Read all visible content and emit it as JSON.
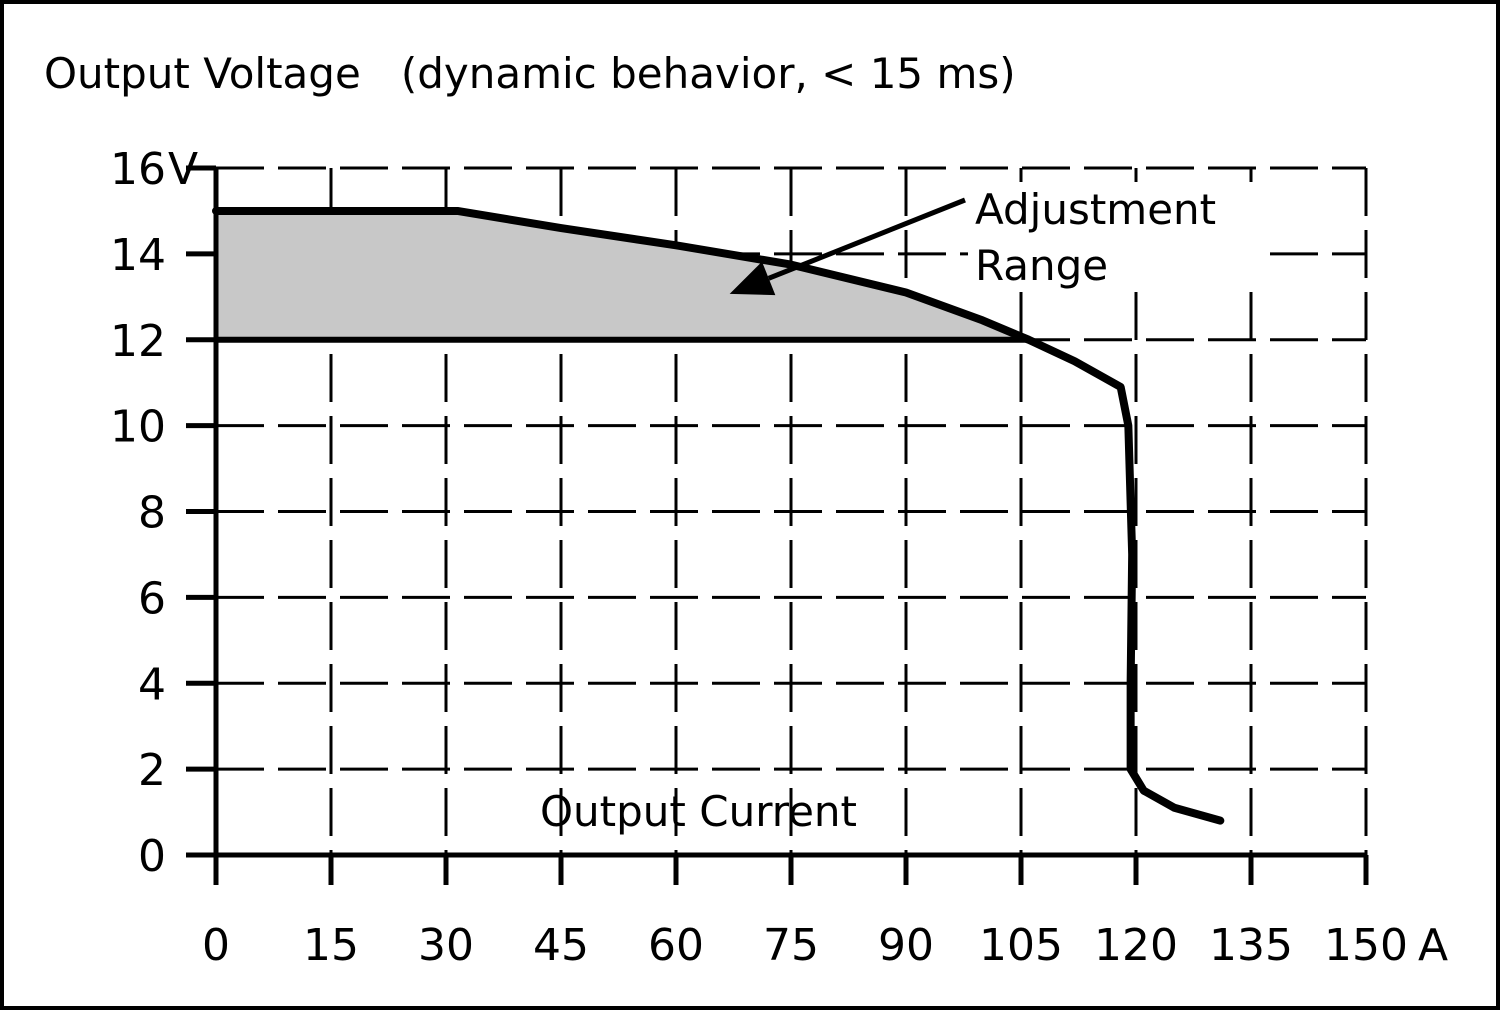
{
  "chart_data": {
    "type": "line",
    "title": "Output Voltage   (dynamic behavior, < 15 ms)",
    "xlabel": "Output Current",
    "ylabel": "",
    "xlim": [
      0,
      150
    ],
    "ylim": [
      0,
      16
    ],
    "x_ticks": [
      "0",
      "15",
      "30",
      "45",
      "60",
      "75",
      "90",
      "105",
      "120",
      "135",
      "150"
    ],
    "x_unit": "A",
    "y_ticks": [
      "0",
      "2",
      "4",
      "6",
      "8",
      "10",
      "12",
      "14",
      "16"
    ],
    "y_unit": "V",
    "grid": true,
    "grid_style": "dashed",
    "series": [
      {
        "x": [
          0,
          31.5,
          45,
          60,
          75,
          90,
          100,
          106,
          112,
          118,
          119,
          119.5,
          119.3,
          119.3,
          121,
          125,
          131
        ],
        "y": [
          15,
          15,
          14.6,
          14.2,
          13.75,
          13.1,
          12.45,
          12,
          11.5,
          10.9,
          10,
          7,
          4,
          2,
          1.5,
          1.1,
          0.8
        ],
        "color": "#000000"
      }
    ],
    "shaded_region": {
      "lower": 12,
      "upper": "curve",
      "x_range": [
        0,
        106
      ],
      "color": "#c8c8c8"
    },
    "lower_bound_line": {
      "y": 12,
      "x_range": [
        0,
        106
      ]
    },
    "annotations": [
      {
        "text_lines": [
          "Adjustment",
          "Range"
        ],
        "arrow_target": [
          67,
          13.3
        ]
      }
    ]
  }
}
